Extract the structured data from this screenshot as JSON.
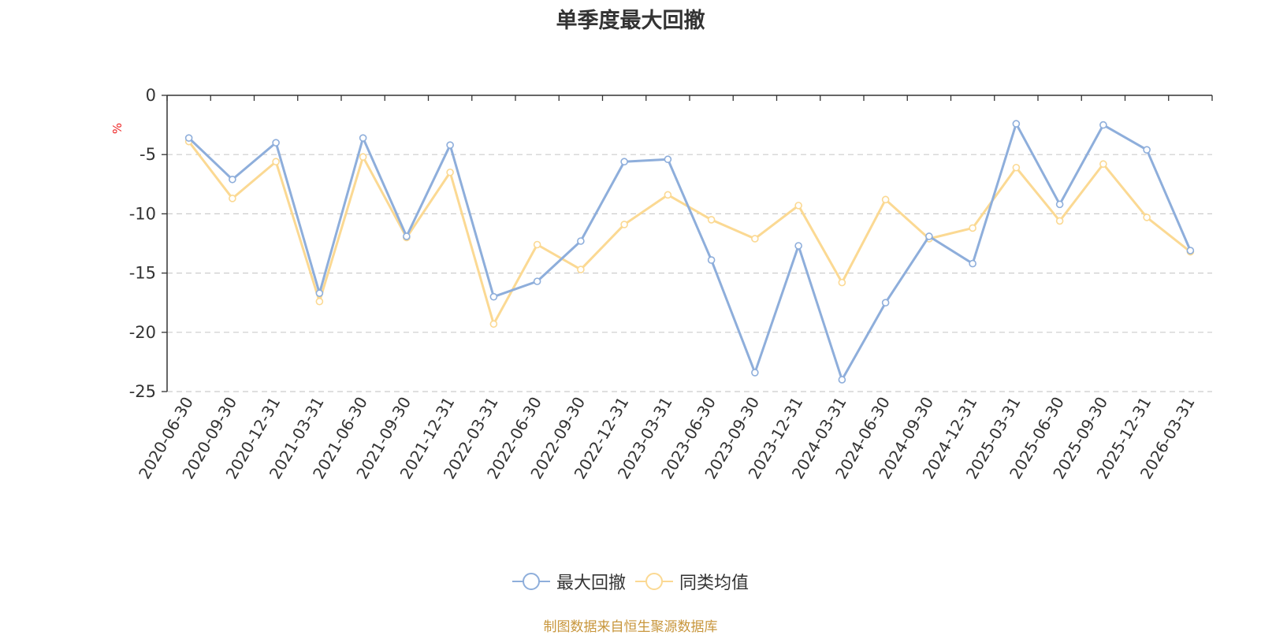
{
  "chart_data": {
    "type": "line",
    "title": "单季度最大回撤",
    "ylabel": "%",
    "xlabel": "",
    "ylim": [
      -25,
      0
    ],
    "yticks": [
      0,
      -5,
      -10,
      -15,
      -20,
      -25
    ],
    "grid": true,
    "legend_position": "bottom",
    "categories": [
      "2020-06-30",
      "2020-09-30",
      "2020-12-31",
      "2021-03-31",
      "2021-06-30",
      "2021-09-30",
      "2021-12-31",
      "2022-03-31",
      "2022-06-30",
      "2022-09-30",
      "2022-12-31",
      "2023-03-31",
      "2023-06-30",
      "2023-09-30",
      "2023-12-31",
      "2024-03-31",
      "2024-06-30",
      "2024-09-30",
      "2024-12-31",
      "2025-03-31",
      "2025-06-30",
      "2025-09-30",
      "2025-12-31",
      "2026-03-31"
    ],
    "series": [
      {
        "name": "最大回撤",
        "color": "#8eaedb",
        "values": [
          -3.6,
          -7.1,
          -4.0,
          -16.7,
          -3.6,
          -11.9,
          -4.2,
          -17.0,
          -15.7,
          -12.3,
          -5.6,
          -5.4,
          -13.9,
          -23.4,
          -12.7,
          -24.0,
          -17.5,
          -11.9,
          -14.2,
          -2.4,
          -9.2,
          -2.5,
          -4.6,
          -13.1
        ]
      },
      {
        "name": "同类均值",
        "color": "#fbd993",
        "values": [
          -3.9,
          -8.7,
          -5.6,
          -17.4,
          -5.2,
          -12.0,
          -6.5,
          -19.3,
          -12.6,
          -14.7,
          -10.9,
          -8.4,
          -10.5,
          -12.1,
          -9.3,
          -15.8,
          -8.8,
          -12.1,
          -11.2,
          -6.1,
          -10.6,
          -5.8,
          -10.3,
          -13.2
        ]
      }
    ]
  },
  "source_note": "制图数据来自恒生聚源数据库"
}
